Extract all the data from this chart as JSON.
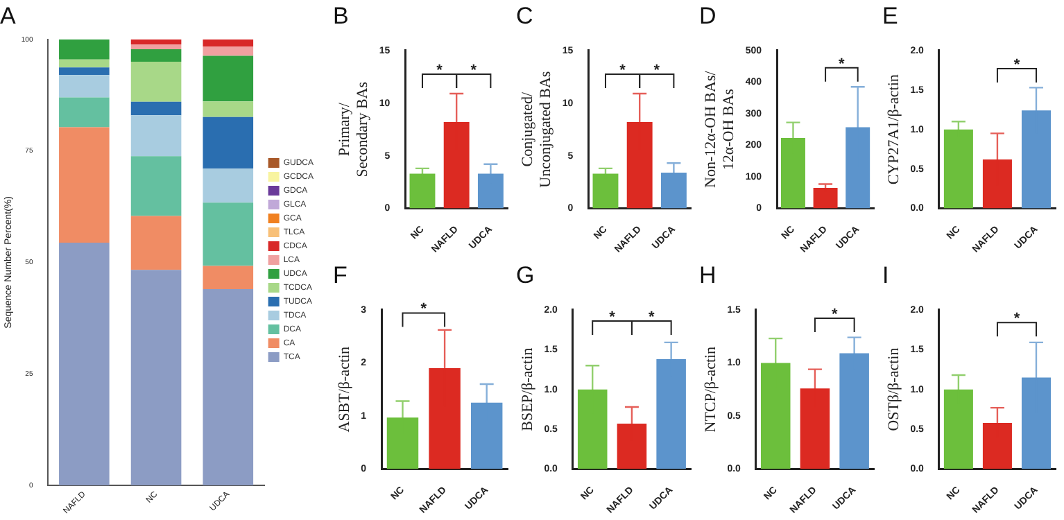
{
  "chart_data": [
    {
      "type": "bar",
      "title": "A",
      "ylabel": "Sequence Number Percent(%)",
      "stacked": true,
      "legend": "right",
      "grid": false,
      "categories": [
        "NAFLD",
        "NC",
        "UDCA"
      ],
      "ylim": [
        0,
        100
      ],
      "yticks": [
        0,
        25,
        50,
        75,
        100
      ],
      "series": [
        {
          "name": "TCA",
          "color": "#8c9cc4",
          "values": [
            54.4,
            48.3,
            44.0
          ]
        },
        {
          "name": "CA",
          "color": "#f08c64",
          "values": [
            25.9,
            12.1,
            5.2
          ]
        },
        {
          "name": "DCA",
          "color": "#64c0a0",
          "values": [
            6.7,
            13.4,
            14.2
          ]
        },
        {
          "name": "TDCA",
          "color": "#a8cce0",
          "values": [
            5.0,
            9.2,
            7.6
          ]
        },
        {
          "name": "TUDCA",
          "color": "#2a6eb0",
          "values": [
            1.7,
            3.0,
            11.6
          ]
        },
        {
          "name": "TCDCA",
          "color": "#a8d888",
          "values": [
            1.8,
            9.0,
            3.5
          ]
        },
        {
          "name": "UDCA",
          "color": "#30a040",
          "values": [
            4.5,
            2.8,
            10.2
          ]
        },
        {
          "name": "LCA",
          "color": "#f0a0a0",
          "values": [
            0,
            1.1,
            2.1
          ]
        },
        {
          "name": "CDCA",
          "color": "#d82828",
          "values": [
            0,
            1.1,
            1.6
          ]
        },
        {
          "name": "TLCA",
          "color": "#f8c078",
          "values": [
            0,
            0,
            0
          ]
        },
        {
          "name": "GCA",
          "color": "#f08020",
          "values": [
            0,
            0,
            0
          ]
        },
        {
          "name": "GLCA",
          "color": "#c0a8d8",
          "values": [
            0,
            0,
            0
          ]
        },
        {
          "name": "GDCA",
          "color": "#6a3a9a",
          "values": [
            0,
            0,
            0
          ]
        },
        {
          "name": "GCDCA",
          "color": "#f8f4a0",
          "values": [
            0,
            0,
            0
          ]
        },
        {
          "name": "GUDCA",
          "color": "#a85828",
          "values": [
            0,
            0,
            0
          ]
        }
      ]
    },
    {
      "type": "bar",
      "title": "B",
      "ylabel": "Primary/ Secondary BAs",
      "grid": false,
      "legend": false,
      "categories": [
        "NC",
        "NAFLD",
        "UDCA"
      ],
      "ylim": [
        0,
        15
      ],
      "yticks": [
        0,
        5,
        10,
        15
      ],
      "values": [
        3.3,
        8.2,
        3.3
      ],
      "colors": [
        "#6cbf3c",
        "#dc2a22",
        "#5c94cc"
      ],
      "errors": [
        0.5,
        2.7,
        0.9
      ],
      "annotations": [
        "*",
        "*"
      ]
    },
    {
      "type": "bar",
      "title": "C",
      "ylabel": "Conjugated/ Unconjugated BAs",
      "grid": false,
      "legend": false,
      "categories": [
        "NC",
        "NAFLD",
        "UDCA"
      ],
      "ylim": [
        0,
        15
      ],
      "yticks": [
        0,
        5,
        10,
        15
      ],
      "values": [
        3.3,
        8.2,
        3.4
      ],
      "colors": [
        "#6cbf3c",
        "#dc2a22",
        "#5c94cc"
      ],
      "errors": [
        0.5,
        2.7,
        0.9
      ],
      "annotations": [
        "*",
        "*"
      ]
    },
    {
      "type": "bar",
      "title": "D",
      "ylabel": "Non-12α-OH BAs/ 12α-OH BAs",
      "grid": false,
      "legend": false,
      "categories": [
        "NC",
        "NAFLD",
        "UDCA"
      ],
      "ylim": [
        0,
        500
      ],
      "yticks": [
        0,
        100,
        200,
        300,
        400,
        500
      ],
      "values": [
        223,
        65,
        257
      ],
      "colors": [
        "#6cbf3c",
        "#dc2a22",
        "#5c94cc"
      ],
      "errors": [
        49,
        12,
        128
      ],
      "annotations": [
        "*"
      ]
    },
    {
      "type": "bar",
      "title": "E",
      "ylabel": "CYP27A1/β-actin",
      "grid": false,
      "legend": false,
      "categories": [
        "NC",
        "NAFLD",
        "UDCA"
      ],
      "ylim": [
        0,
        2
      ],
      "yticks": [
        {
          "value": 0,
          "label": "0.0"
        },
        {
          "value": 0.5,
          "label": "0.5"
        },
        {
          "value": 1,
          "label": "1.0"
        },
        {
          "value": 1.5,
          "label": "1.5"
        },
        {
          "value": 2,
          "label": "2.0"
        }
      ],
      "values": [
        1.0,
        0.62,
        1.24
      ],
      "colors": [
        "#6cbf3c",
        "#dc2a22",
        "#5c94cc"
      ],
      "errors": [
        0.1,
        0.33,
        0.29
      ],
      "annotations": [
        "*"
      ]
    },
    {
      "type": "bar",
      "title": "F",
      "ylabel": "ASBT/β-actin",
      "grid": false,
      "legend": false,
      "categories": [
        "NC",
        "NAFLD",
        "UDCA"
      ],
      "ylim": [
        0,
        3
      ],
      "yticks": [
        0,
        1,
        2,
        3
      ],
      "values": [
        0.97,
        1.9,
        1.25
      ],
      "colors": [
        "#6cbf3c",
        "#dc2a22",
        "#5c94cc"
      ],
      "errors": [
        0.31,
        0.72,
        0.35
      ],
      "annotations": [
        "*"
      ]
    },
    {
      "type": "bar",
      "title": "G",
      "ylabel": "BSEP/β-actin",
      "grid": false,
      "legend": false,
      "categories": [
        "NC",
        "NAFLD",
        "UDCA"
      ],
      "ylim": [
        0,
        2
      ],
      "yticks": [
        {
          "value": 0,
          "label": "0.0"
        },
        {
          "value": 0.5,
          "label": "0.5"
        },
        {
          "value": 1,
          "label": "1.0"
        },
        {
          "value": 1.5,
          "label": "1.5"
        },
        {
          "value": 2,
          "label": "2.0"
        }
      ],
      "values": [
        1.0,
        0.57,
        1.38
      ],
      "colors": [
        "#6cbf3c",
        "#dc2a22",
        "#5c94cc"
      ],
      "errors": [
        0.3,
        0.21,
        0.21
      ],
      "annotations": [
        "*",
        "*"
      ]
    },
    {
      "type": "bar",
      "title": "H",
      "ylabel": "NTCP/β-actin",
      "grid": false,
      "legend": false,
      "categories": [
        "NC",
        "NAFLD",
        "UDCA"
      ],
      "ylim": [
        0,
        1.5
      ],
      "yticks": [
        {
          "value": 0,
          "label": "0.0"
        },
        {
          "value": 0.5,
          "label": "0.5"
        },
        {
          "value": 1,
          "label": "1.0"
        },
        1.5
      ],
      "values": [
        1.0,
        0.76,
        1.09
      ],
      "colors": [
        "#6cbf3c",
        "#dc2a22",
        "#5c94cc"
      ],
      "errors": [
        0.23,
        0.18,
        0.15
      ],
      "annotations": [
        "*"
      ]
    },
    {
      "type": "bar",
      "title": "I",
      "ylabel": "OSTβ/β-actin",
      "grid": false,
      "legend": false,
      "categories": [
        "NC",
        "NAFLD",
        "UDCA"
      ],
      "ylim": [
        0,
        2
      ],
      "yticks": [
        {
          "value": 0,
          "label": "0.0"
        },
        {
          "value": 0.5,
          "label": "0.5"
        },
        {
          "value": 1,
          "label": "1.0"
        },
        {
          "value": 1.5,
          "label": "1.5"
        },
        {
          "value": 2,
          "label": "2.0"
        }
      ],
      "values": [
        1.0,
        0.58,
        1.15
      ],
      "colors": [
        "#6cbf3c",
        "#dc2a22",
        "#5c94cc"
      ],
      "errors": [
        0.18,
        0.19,
        0.44
      ],
      "annotations": [
        "*"
      ]
    }
  ]
}
